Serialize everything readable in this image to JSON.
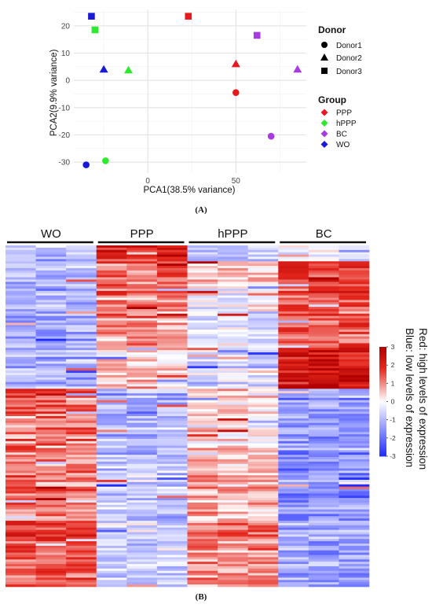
{
  "panel_a_label": "(A)",
  "panel_b_label": "(B)",
  "chart_data": [
    {
      "type": "scatter",
      "title": "",
      "xlabel": "PCA1(38.5% variance)",
      "ylabel": "PCA2(9.9% variance)",
      "xlim": [
        -42,
        90
      ],
      "ylim": [
        -34,
        26
      ],
      "xticks": [
        0,
        50
      ],
      "yticks": [
        -30,
        -20,
        -10,
        0,
        10,
        20
      ],
      "grid": true,
      "legend_placement": "right",
      "donor_legend": {
        "title": "Donor",
        "items": [
          {
            "name": "Donor1",
            "shape": "circle"
          },
          {
            "name": "Donor2",
            "shape": "triangle"
          },
          {
            "name": "Donor3",
            "shape": "square"
          }
        ]
      },
      "group_legend": {
        "title": "Group",
        "items": [
          {
            "name": "PPP",
            "color": "#e8191e"
          },
          {
            "name": "hPPP",
            "color": "#2eea2e"
          },
          {
            "name": "BC",
            "color": "#a53be0"
          },
          {
            "name": "WO",
            "color": "#1a1ad6"
          }
        ]
      },
      "points": [
        {
          "x": -32,
          "y": 23.5,
          "group": "WO",
          "donor": "Donor3"
        },
        {
          "x": -30,
          "y": 18.5,
          "group": "hPPP",
          "donor": "Donor3"
        },
        {
          "x": 23,
          "y": 23.5,
          "group": "PPP",
          "donor": "Donor3"
        },
        {
          "x": 62,
          "y": 16.5,
          "group": "BC",
          "donor": "Donor3"
        },
        {
          "x": -25,
          "y": 4,
          "group": "WO",
          "donor": "Donor2"
        },
        {
          "x": -11,
          "y": 3.7,
          "group": "hPPP",
          "donor": "Donor2"
        },
        {
          "x": 50,
          "y": 6,
          "group": "PPP",
          "donor": "Donor2"
        },
        {
          "x": 85,
          "y": 4,
          "group": "BC",
          "donor": "Donor2"
        },
        {
          "x": 50,
          "y": -4.5,
          "group": "PPP",
          "donor": "Donor1"
        },
        {
          "x": 70,
          "y": -20.5,
          "group": "BC",
          "donor": "Donor1"
        },
        {
          "x": -24,
          "y": -29.5,
          "group": "hPPP",
          "donor": "Donor1"
        },
        {
          "x": -35,
          "y": -31,
          "group": "WO",
          "donor": "Donor1"
        }
      ]
    },
    {
      "type": "heatmap",
      "title": "",
      "column_groups": [
        "WO",
        "PPP",
        "hPPP",
        "BC"
      ],
      "columns_per_group": 3,
      "colorbar": {
        "min": -3,
        "max": 3,
        "ticks": [
          3,
          2,
          1,
          0,
          -1,
          -2,
          -3
        ],
        "low_color": "#1f2bff",
        "mid_color": "#ffffff",
        "high_color": "#b00000"
      },
      "annotation_lines": [
        "Red: high levels of expression",
        "Blue: low levels of expression"
      ],
      "pattern_by_row_fraction": [
        {
          "rows": [
            0.0,
            0.05
          ],
          "WO": -0.9,
          "PPP": 2.0,
          "hPPP": -0.8,
          "BC": -0.3
        },
        {
          "rows": [
            0.05,
            0.15
          ],
          "WO": -1.0,
          "PPP": 1.2,
          "hPPP": 0.3,
          "BC": 1.6
        },
        {
          "rows": [
            0.15,
            0.3
          ],
          "WO": -1.1,
          "PPP": 1.0,
          "hPPP": -0.2,
          "BC": 1.5
        },
        {
          "rows": [
            0.3,
            0.42
          ],
          "WO": -1.0,
          "PPP": 0.4,
          "hPPP": -0.6,
          "BC": 2.4
        },
        {
          "rows": [
            0.42,
            0.6
          ],
          "WO": 1.2,
          "PPP": -1.0,
          "hPPP": 0.3,
          "BC": -1.4
        },
        {
          "rows": [
            0.6,
            0.78
          ],
          "WO": 1.0,
          "PPP": -0.8,
          "hPPP": 0.5,
          "BC": -1.6
        },
        {
          "rows": [
            0.78,
            1.0
          ],
          "WO": 1.5,
          "PPP": -0.7,
          "hPPP": 0.9,
          "BC": -1.3
        }
      ]
    }
  ]
}
